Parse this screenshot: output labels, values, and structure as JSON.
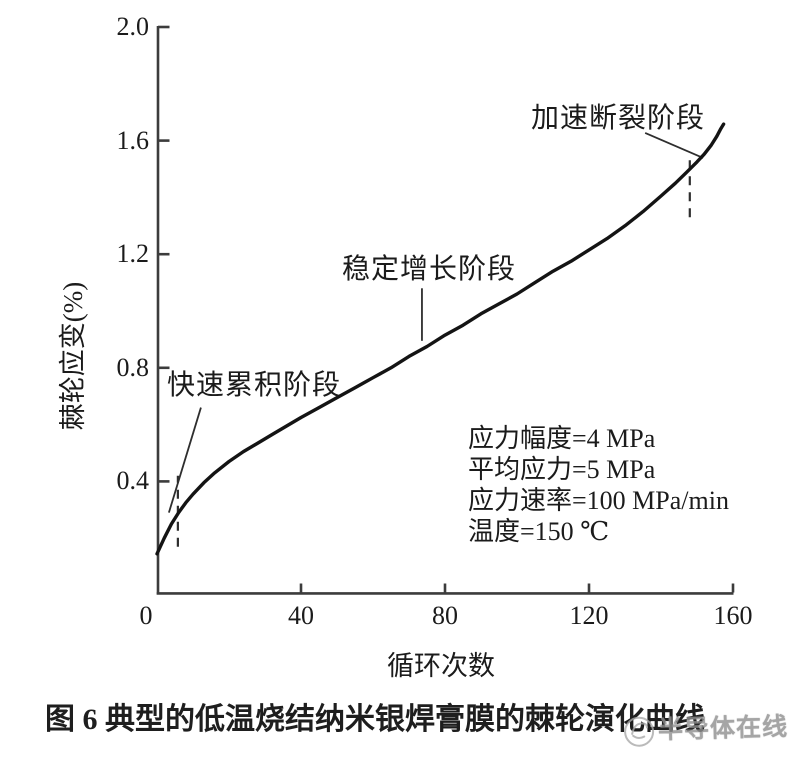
{
  "figure": {
    "caption": "图 6 典型的低温烧结纳米银焊膏膜的棘轮演化曲线",
    "watermark_text": "半导体在线"
  },
  "chart_data": {
    "type": "line",
    "title": "",
    "xlabel": "循环次数",
    "ylabel": "棘轮应变(%)",
    "xlim": [
      0,
      160
    ],
    "ylim": [
      0,
      2.0
    ],
    "xticks": [
      0,
      40,
      80,
      120,
      160
    ],
    "yticks": [
      0.4,
      0.8,
      1.2,
      1.6,
      2.0
    ],
    "xtick_labels": [
      "0",
      "40",
      "80",
      "120",
      "160"
    ],
    "ytick_labels": [
      "0.4",
      "0.8",
      "1.2",
      "1.6",
      "2.0"
    ],
    "grid": false,
    "legend": "none",
    "line_color": "#141414",
    "axis_color": "#3c3c3c",
    "series": [
      {
        "name": "棘轮应变演化曲线",
        "points": [
          [
            0,
            0.145
          ],
          [
            2,
            0.2
          ],
          [
            4,
            0.25
          ],
          [
            6,
            0.29
          ],
          [
            8,
            0.325
          ],
          [
            10,
            0.355
          ],
          [
            13,
            0.395
          ],
          [
            16,
            0.43
          ],
          [
            20,
            0.47
          ],
          [
            24,
            0.505
          ],
          [
            28,
            0.535
          ],
          [
            32,
            0.565
          ],
          [
            36,
            0.595
          ],
          [
            40,
            0.625
          ],
          [
            45,
            0.66
          ],
          [
            50,
            0.695
          ],
          [
            55,
            0.73
          ],
          [
            60,
            0.765
          ],
          [
            65,
            0.8
          ],
          [
            70,
            0.84
          ],
          [
            75,
            0.875
          ],
          [
            80,
            0.915
          ],
          [
            85,
            0.95
          ],
          [
            90,
            0.99
          ],
          [
            95,
            1.025
          ],
          [
            100,
            1.06
          ],
          [
            105,
            1.1
          ],
          [
            110,
            1.14
          ],
          [
            115,
            1.175
          ],
          [
            120,
            1.215
          ],
          [
            125,
            1.255
          ],
          [
            130,
            1.3
          ],
          [
            135,
            1.35
          ],
          [
            140,
            1.405
          ],
          [
            144,
            1.45
          ],
          [
            147,
            1.487
          ],
          [
            150,
            1.525
          ],
          [
            152,
            1.552
          ],
          [
            154,
            1.585
          ],
          [
            155.5,
            1.615
          ],
          [
            156.6,
            1.642
          ],
          [
            157.4,
            1.658
          ]
        ]
      }
    ],
    "annotations": [
      {
        "label": "快速累积阶段",
        "leader": [
          [
            12.2,
            0.66
          ],
          [
            3.3,
            0.29
          ]
        ]
      },
      {
        "label": "稳定增长阶段",
        "leader": [
          [
            73.6,
            1.08
          ],
          [
            73.6,
            0.895
          ]
        ]
      },
      {
        "label": "加速断裂阶段",
        "leader": [
          [
            135.6,
            1.627
          ],
          [
            151.7,
            1.539
          ]
        ]
      }
    ],
    "dashed_markers": [
      {
        "x": 5.8,
        "y_from": 0.17,
        "y_to": 0.42
      },
      {
        "x": 148,
        "y_from": 1.33,
        "y_to": 1.54
      }
    ],
    "params_text": [
      "应力幅度=4 MPa",
      "平均应力=5 MPa",
      "应力速率=100 MPa/min",
      "温度=150 ℃"
    ]
  }
}
